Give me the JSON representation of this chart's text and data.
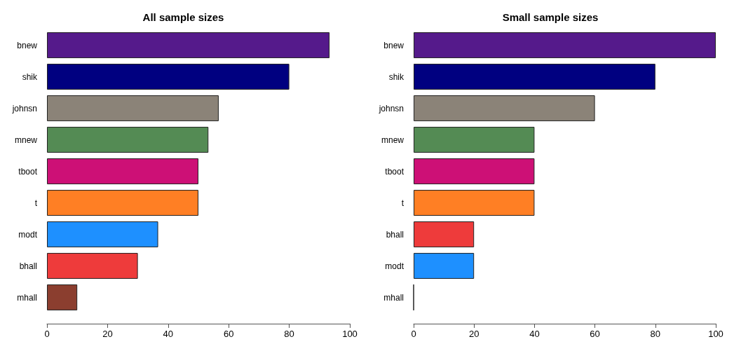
{
  "chart_data": [
    {
      "type": "bar",
      "title": "All sample sizes",
      "orientation": "horizontal",
      "categories": [
        "bnew",
        "shik",
        "johnsn",
        "mnew",
        "tboot",
        "t",
        "modt",
        "bhall",
        "mhall"
      ],
      "values": [
        93.3,
        80,
        56.7,
        53.3,
        50,
        50,
        36.7,
        30,
        10
      ],
      "colors": [
        "#551a8b",
        "#000080",
        "#8b8378",
        "#548b54",
        "#cd1076",
        "#ff7f24",
        "#1e90ff",
        "#ee3b3b",
        "#8b3e2f"
      ],
      "xlim": [
        0,
        100
      ],
      "xticks": [
        0,
        20,
        40,
        60,
        80,
        100
      ]
    },
    {
      "type": "bar",
      "title": "Small sample sizes",
      "orientation": "horizontal",
      "categories": [
        "bnew",
        "shik",
        "johnsn",
        "mnew",
        "tboot",
        "t",
        "bhall",
        "modt",
        "mhall"
      ],
      "values": [
        100,
        80,
        60,
        40,
        40,
        40,
        20,
        20,
        0
      ],
      "colors": [
        "#551a8b",
        "#000080",
        "#8b8378",
        "#548b54",
        "#cd1076",
        "#ff7f24",
        "#ee3b3b",
        "#1e90ff",
        "#222222"
      ],
      "xlim": [
        0,
        100
      ],
      "xticks": [
        0,
        20,
        40,
        60,
        80,
        100
      ]
    }
  ]
}
